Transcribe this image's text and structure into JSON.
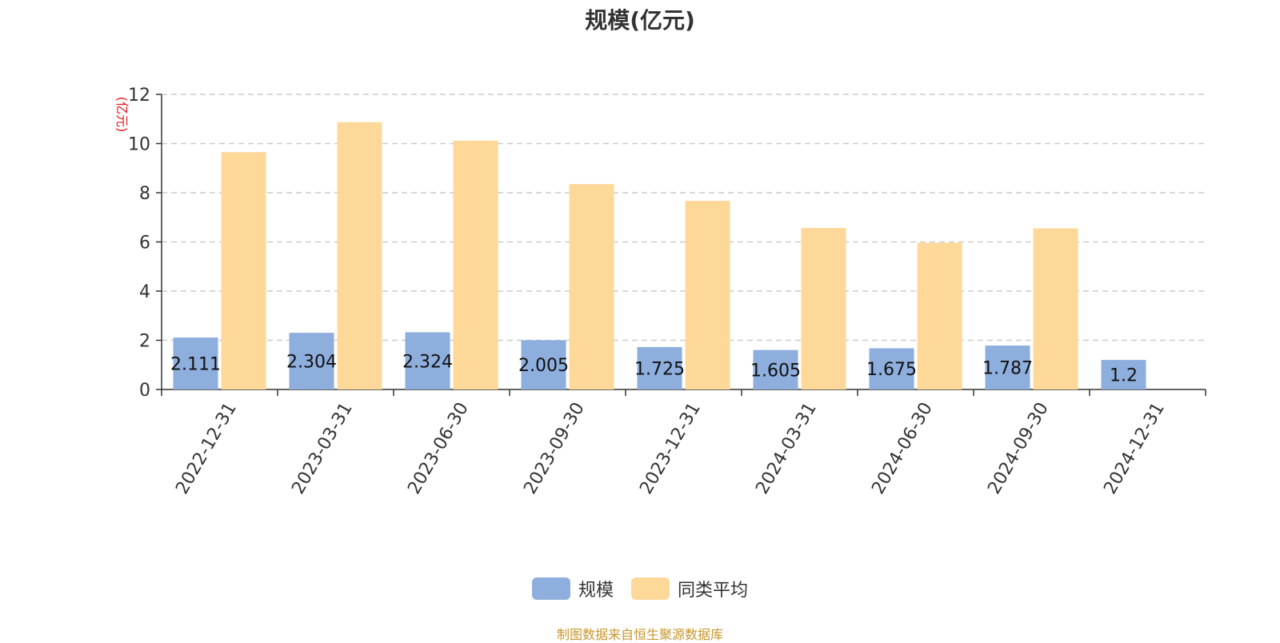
{
  "title": "规模(亿元)",
  "source_note": "制图数据来自恒生聚源数据库",
  "colors": {
    "series_1": "#8eaedd",
    "series_2": "#fdd899",
    "ylabel": "#e8141b",
    "grid": "#cccccc",
    "axis": "#333333",
    "source": "#c8962e"
  },
  "chart_data": {
    "type": "bar",
    "title": "规模(亿元)",
    "ylabel": "(亿元)",
    "xlabel": "",
    "ylim": [
      0,
      12
    ],
    "yticks": [
      0,
      2,
      4,
      6,
      8,
      10,
      12
    ],
    "grid": true,
    "legend_position": "bottom",
    "categories": [
      "2022-12-31",
      "2023-03-31",
      "2023-06-30",
      "2023-09-30",
      "2023-12-31",
      "2024-03-31",
      "2024-06-30",
      "2024-09-30",
      "2024-12-31"
    ],
    "series": [
      {
        "name": "规模",
        "values": [
          2.111,
          2.304,
          2.324,
          2.005,
          1.725,
          1.605,
          1.675,
          1.787,
          1.2
        ],
        "data_labels": [
          "2.111",
          "2.304",
          "2.324",
          "2.005",
          "1.725",
          "1.605",
          "1.675",
          "1.787",
          "1.2"
        ]
      },
      {
        "name": "同类平均",
        "values": [
          9.65,
          10.87,
          10.12,
          8.35,
          7.67,
          6.57,
          5.97,
          6.55,
          null
        ]
      }
    ]
  }
}
